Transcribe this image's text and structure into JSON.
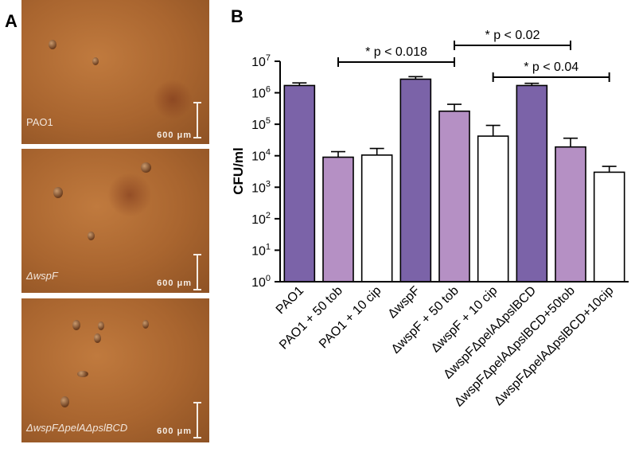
{
  "panel_a": {
    "letter": "A",
    "images": [
      {
        "label": "PAO1",
        "scale_text": "600 μm"
      },
      {
        "label": "ΔwspF",
        "scale_text": "600 μm"
      },
      {
        "label": "ΔwspFΔpelAΔpslBCD",
        "scale_text": "600 μm"
      }
    ]
  },
  "panel_b": {
    "letter": "B"
  },
  "colors": {
    "purple": "#7b63a8",
    "lilac": "#b590c4",
    "white": "#ffffff"
  },
  "chart_data": {
    "type": "bar",
    "ylabel": "CFU/ml",
    "yscale": "log",
    "ylim": [
      1,
      10000000
    ],
    "yticks": [
      {
        "v": 1,
        "base": "10",
        "exp": "0"
      },
      {
        "v": 10,
        "base": "10",
        "exp": "1"
      },
      {
        "v": 100,
        "base": "10",
        "exp": "2"
      },
      {
        "v": 1000,
        "base": "10",
        "exp": "3"
      },
      {
        "v": 10000,
        "base": "10",
        "exp": "4"
      },
      {
        "v": 100000,
        "base": "10",
        "exp": "5"
      },
      {
        "v": 1000000,
        "base": "10",
        "exp": "6"
      },
      {
        "v": 10000000,
        "base": "10",
        "exp": "7"
      }
    ],
    "categories": [
      "PAO1",
      "PAO1 + 50 tob",
      "PAO1 + 10 cip",
      "ΔwspF",
      "ΔwspF + 50 tob",
      "ΔwspF + 10 cip",
      "ΔwspFΔpelAΔpslBCD",
      "ΔwspFΔpelAΔpslBCD+50tob",
      "ΔwspFΔpelAΔpslBCD+10cip"
    ],
    "values": [
      1700000,
      9000,
      10500,
      2700000,
      260000,
      42000,
      1700000,
      19000,
      3000
    ],
    "errors_upper": [
      2050000,
      13500,
      17000,
      3250000,
      430000,
      92000,
      2000000,
      36000,
      4600
    ],
    "bar_colors": [
      "purple",
      "lilac",
      "white",
      "purple",
      "lilac",
      "white",
      "purple",
      "lilac",
      "white"
    ],
    "annotations": [
      {
        "text": "* p < 0.018",
        "from": 1,
        "to": 4
      },
      {
        "text": "* p < 0.02",
        "from": 4,
        "to": 7
      },
      {
        "text": "* p < 0.04",
        "from": 5,
        "to": 8
      }
    ]
  }
}
